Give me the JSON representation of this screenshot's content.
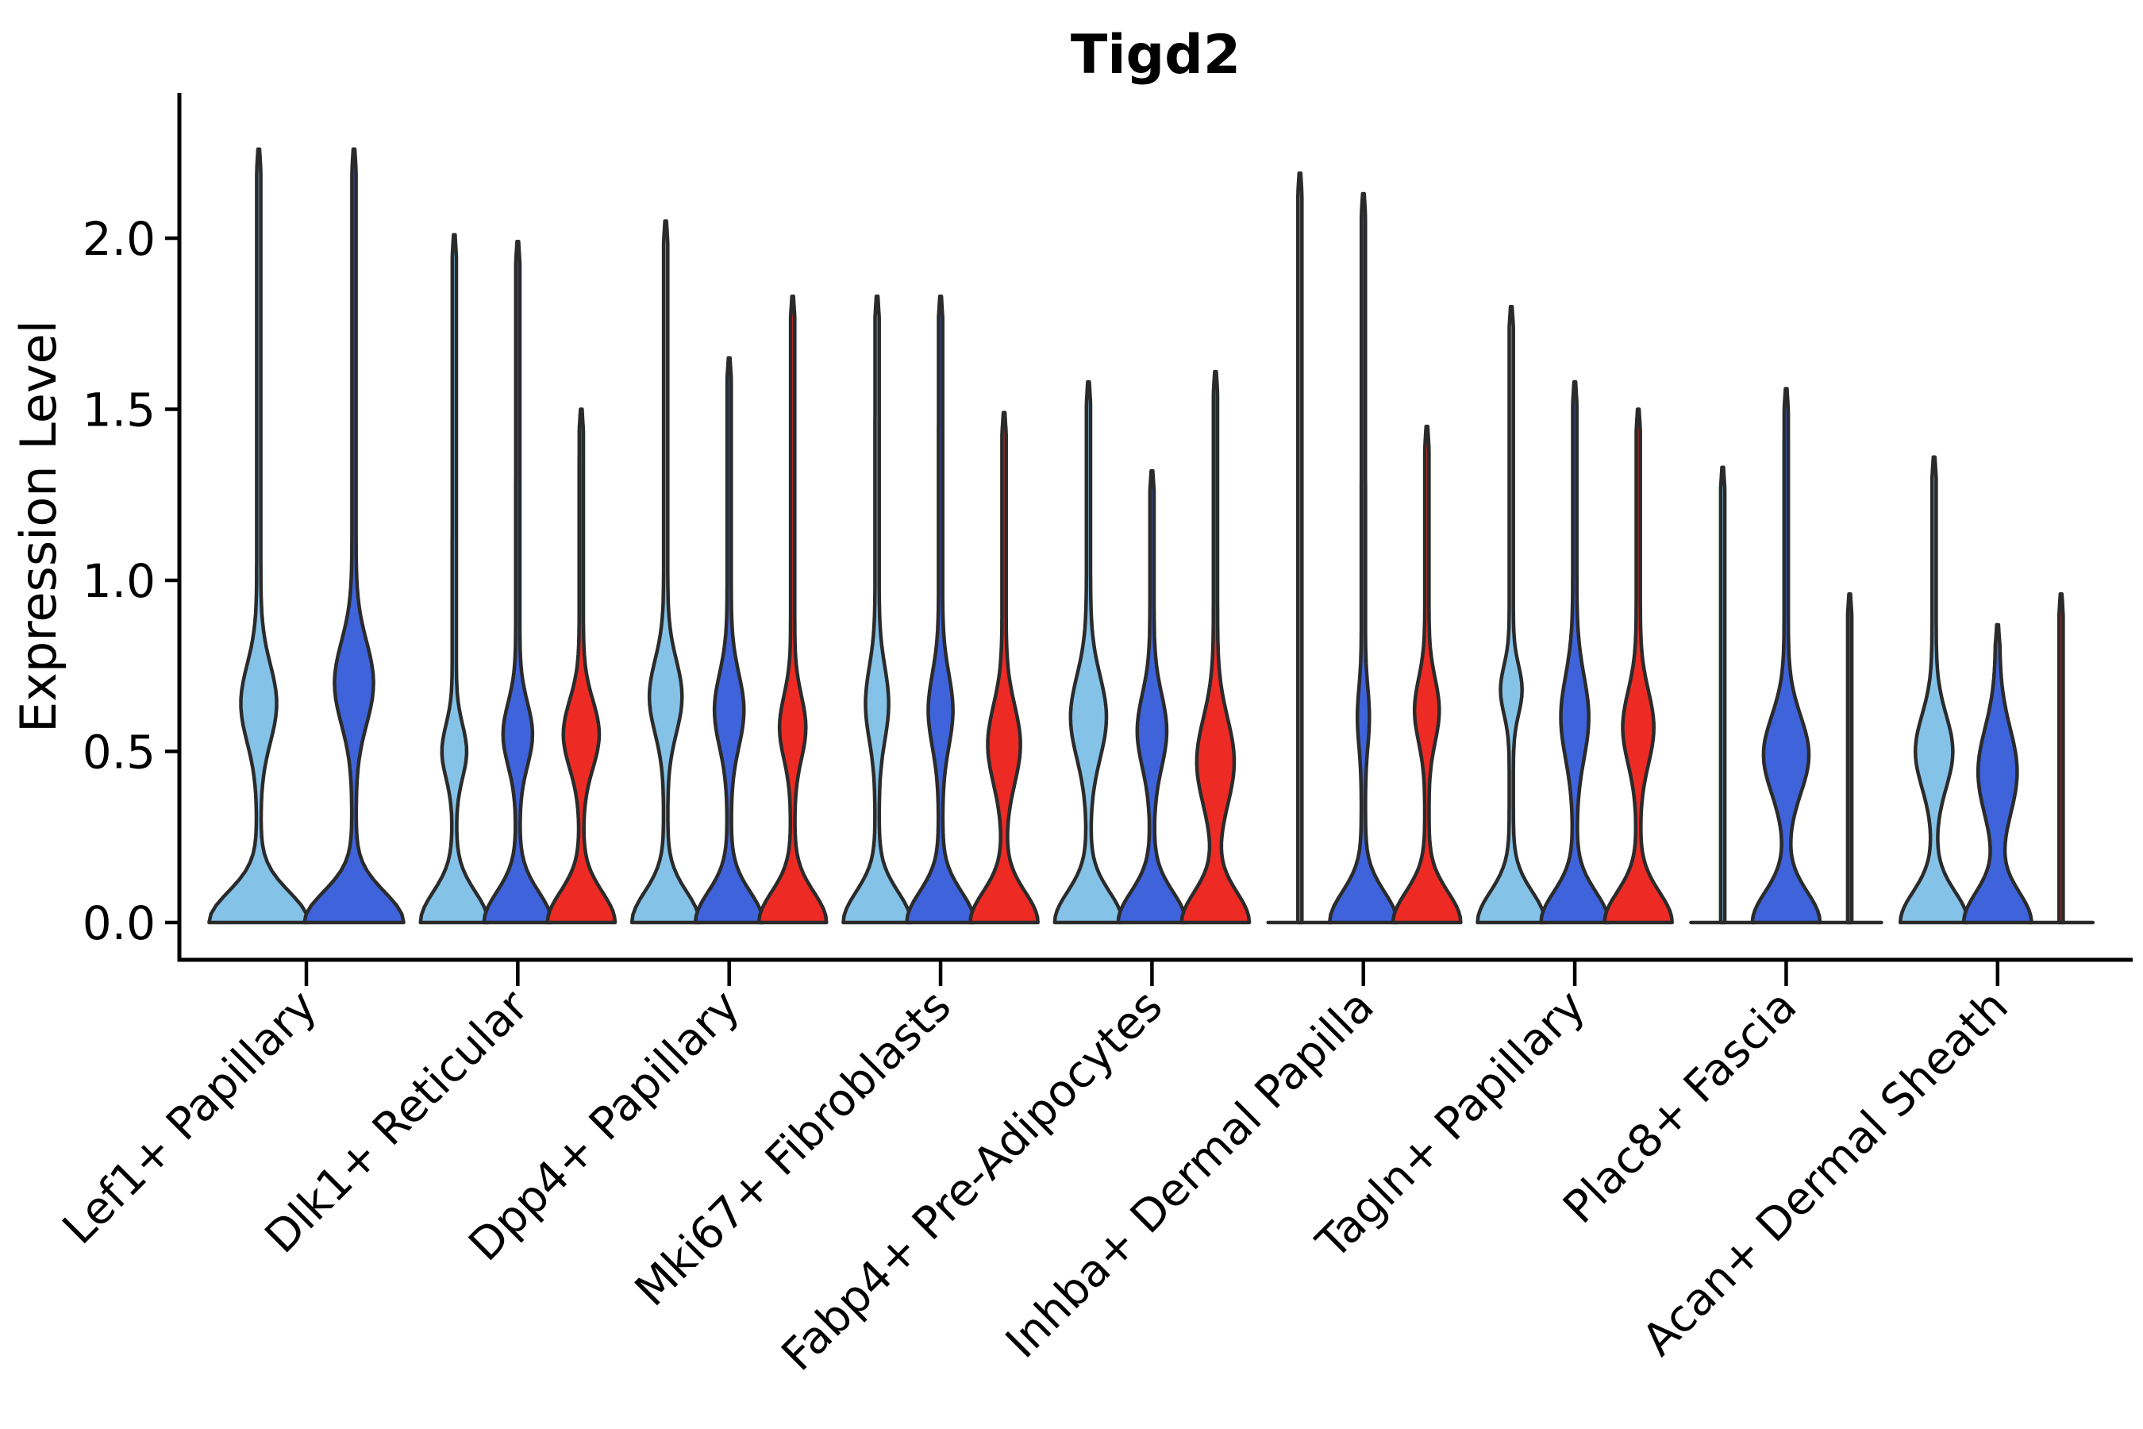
{
  "title": "Tigd2",
  "ylabel": "Expression Level",
  "yticks": [
    "0.0",
    "0.5",
    "1.0",
    "1.5",
    "2.0"
  ],
  "ytick_values": [
    0.0,
    0.5,
    1.0,
    1.5,
    2.0
  ],
  "colors": {
    "skyblue": "#85C2E8",
    "royalblue": "#3E63DB",
    "red": "#ED2B24",
    "outline": "#2B2B2B",
    "axis": "#000000",
    "background": "#FFFFFF"
  },
  "chart_data": {
    "type": "violin",
    "title": "Tigd2",
    "xlabel": "",
    "ylabel": "Expression Level",
    "ylim": [
      -0.11,
      2.42
    ],
    "grid": false,
    "legend": "none",
    "categories": [
      "Lef1+ Papillary",
      "Dlk1+ Reticular",
      "Dpp4+ Papillary",
      "Mki67+ Fibroblasts",
      "Fabp4+ Pre-Adipocytes",
      "Inhba+ Dermal Papilla",
      "Tagln+ Papillary",
      "Plac8+ Fascia",
      "Acan+ Dermal Sheath"
    ],
    "series": [
      {
        "color_key": "skyblue",
        "max_expression": [
          2.26,
          2.01,
          2.05,
          1.83,
          1.58,
          2.19,
          1.8,
          1.33,
          1.36
        ]
      },
      {
        "color_key": "royalblue",
        "max_expression": [
          2.26,
          1.99,
          1.65,
          1.83,
          1.32,
          2.13,
          1.58,
          1.56,
          0.87
        ]
      },
      {
        "color_key": "red",
        "max_expression": [
          null,
          1.5,
          1.83,
          1.49,
          1.61,
          1.45,
          1.5,
          0.96,
          0.96
        ]
      }
    ],
    "violins": [
      [
        {
          "s": 0,
          "tip": 2.26,
          "base_hw": 60,
          "bulge": {
            "center": 0.64,
            "sigma": 0.16,
            "half_width": 20
          }
        },
        {
          "s": 1,
          "tip": 2.26,
          "base_hw": 60,
          "bulge": {
            "center": 0.7,
            "sigma": 0.17,
            "half_width": 22
          }
        }
      ],
      [
        {
          "s": 0,
          "tip": 2.01,
          "base_hw": 40,
          "bulge": {
            "center": 0.5,
            "sigma": 0.11,
            "half_width": 13
          }
        },
        {
          "s": 1,
          "tip": 1.99,
          "base_hw": 40,
          "bulge": {
            "center": 0.55,
            "sigma": 0.13,
            "half_width": 16
          }
        },
        {
          "s": 2,
          "tip": 1.5,
          "base_hw": 40,
          "bulge": {
            "center": 0.55,
            "sigma": 0.14,
            "half_width": 20
          }
        }
      ],
      [
        {
          "s": 0,
          "tip": 2.05,
          "base_hw": 40,
          "bulge": {
            "center": 0.66,
            "sigma": 0.15,
            "half_width": 18
          }
        },
        {
          "s": 1,
          "tip": 1.65,
          "base_hw": 40,
          "bulge": {
            "center": 0.62,
            "sigma": 0.15,
            "half_width": 16
          }
        },
        {
          "s": 2,
          "tip": 1.83,
          "base_hw": 40,
          "bulge": {
            "center": 0.57,
            "sigma": 0.13,
            "half_width": 14
          }
        }
      ],
      [
        {
          "s": 0,
          "tip": 1.83,
          "base_hw": 40,
          "bulge": {
            "center": 0.64,
            "sigma": 0.15,
            "half_width": 12
          }
        },
        {
          "s": 1,
          "tip": 1.83,
          "base_hw": 40,
          "bulge": {
            "center": 0.62,
            "sigma": 0.15,
            "half_width": 13
          }
        },
        {
          "s": 2,
          "tip": 1.49,
          "base_hw": 40,
          "bulge": {
            "center": 0.52,
            "sigma": 0.16,
            "half_width": 18
          }
        }
      ],
      [
        {
          "s": 0,
          "tip": 1.58,
          "base_hw": 40,
          "bulge": {
            "center": 0.6,
            "sigma": 0.17,
            "half_width": 20
          }
        },
        {
          "s": 1,
          "tip": 1.32,
          "base_hw": 40,
          "bulge": {
            "center": 0.56,
            "sigma": 0.15,
            "half_width": 16
          }
        },
        {
          "s": 2,
          "tip": 1.61,
          "base_hw": 40,
          "bulge": {
            "center": 0.47,
            "sigma": 0.18,
            "half_width": 21
          }
        }
      ],
      [
        {
          "s": 0,
          "tip": 2.19,
          "base_hw": 0,
          "bulge": null
        },
        {
          "s": 1,
          "tip": 2.13,
          "base_hw": 40,
          "bulge": {
            "center": 0.6,
            "sigma": 0.12,
            "half_width": 5
          }
        },
        {
          "s": 2,
          "tip": 1.45,
          "base_hw": 40,
          "bulge": {
            "center": 0.62,
            "sigma": 0.13,
            "half_width": 13
          }
        }
      ],
      [
        {
          "s": 0,
          "tip": 1.8,
          "base_hw": 40,
          "bulge": {
            "center": 0.68,
            "sigma": 0.1,
            "half_width": 11
          }
        },
        {
          "s": 1,
          "tip": 1.58,
          "base_hw": 40,
          "bulge": {
            "center": 0.6,
            "sigma": 0.17,
            "half_width": 15
          }
        },
        {
          "s": 2,
          "tip": 1.5,
          "base_hw": 40,
          "bulge": {
            "center": 0.57,
            "sigma": 0.15,
            "half_width": 17
          }
        }
      ],
      [
        {
          "s": 0,
          "tip": 1.33,
          "base_hw": 0,
          "bulge": null
        },
        {
          "s": 1,
          "tip": 1.56,
          "base_hw": 40,
          "bulge": {
            "center": 0.49,
            "sigma": 0.16,
            "half_width": 26
          }
        },
        {
          "s": 2,
          "tip": 0.96,
          "base_hw": 0,
          "bulge": null
        }
      ],
      [
        {
          "s": 0,
          "tip": 1.36,
          "base_hw": 40,
          "bulge": {
            "center": 0.5,
            "sigma": 0.15,
            "half_width": 21
          }
        },
        {
          "s": 1,
          "tip": 0.87,
          "base_hw": 40,
          "bulge": {
            "center": 0.44,
            "sigma": 0.18,
            "half_width": 22
          }
        },
        {
          "s": 2,
          "tip": 0.96,
          "base_hw": 0,
          "bulge": null
        }
      ]
    ]
  }
}
